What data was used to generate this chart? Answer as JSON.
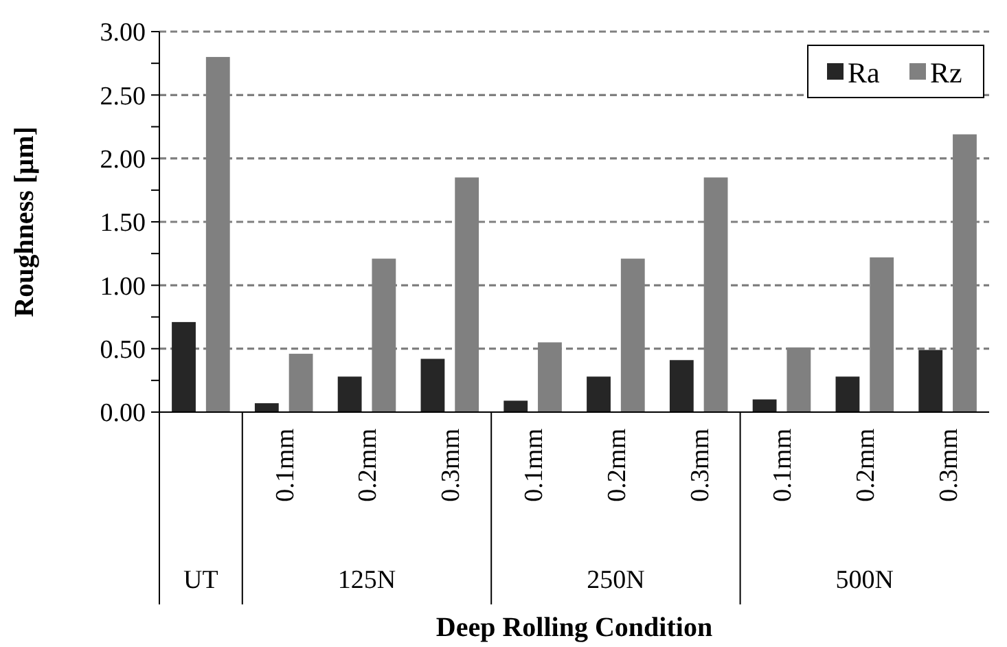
{
  "chart_data": {
    "type": "bar",
    "xlabel": "Deep Rolling Condition",
    "ylabel": "Roughness [µm]",
    "categories": [
      null,
      "0.1mm",
      "0.2mm",
      "0.3mm",
      "0.1mm",
      "0.2mm",
      "0.3mm",
      "0.1mm",
      "0.2mm",
      "0.3mm"
    ],
    "annotations": [
      "UT",
      "125N",
      "250N",
      "500N"
    ],
    "series": [
      {
        "name": "Ra",
        "color": "#262626",
        "values": [
          0.71,
          0.07,
          0.28,
          0.42,
          0.09,
          0.28,
          0.41,
          0.1,
          0.28,
          0.49
        ]
      },
      {
        "name": "Rz",
        "color": "#808080",
        "values": [
          2.8,
          0.46,
          1.21,
          1.85,
          0.55,
          1.21,
          1.85,
          0.51,
          1.22,
          2.19
        ]
      }
    ],
    "ylim": [
      0,
      3
    ],
    "yticks": [
      {
        "value": 0,
        "label": "0.00"
      },
      {
        "value": 0.25,
        "label": null
      },
      {
        "value": 0.5,
        "label": "0.50"
      },
      {
        "value": 0.75,
        "label": null
      },
      {
        "value": 1,
        "label": "1.00"
      },
      {
        "value": 1.25,
        "label": null
      },
      {
        "value": 1.5,
        "label": "1.50"
      },
      {
        "value": 1.75,
        "label": null
      },
      {
        "value": 2,
        "label": "2.00"
      },
      {
        "value": 2.25,
        "label": null
      },
      {
        "value": 2.5,
        "label": "2.50"
      },
      {
        "value": 2.75,
        "label": null
      },
      {
        "value": 3,
        "label": "3.00"
      }
    ],
    "grid": "y",
    "legend": "top right"
  }
}
